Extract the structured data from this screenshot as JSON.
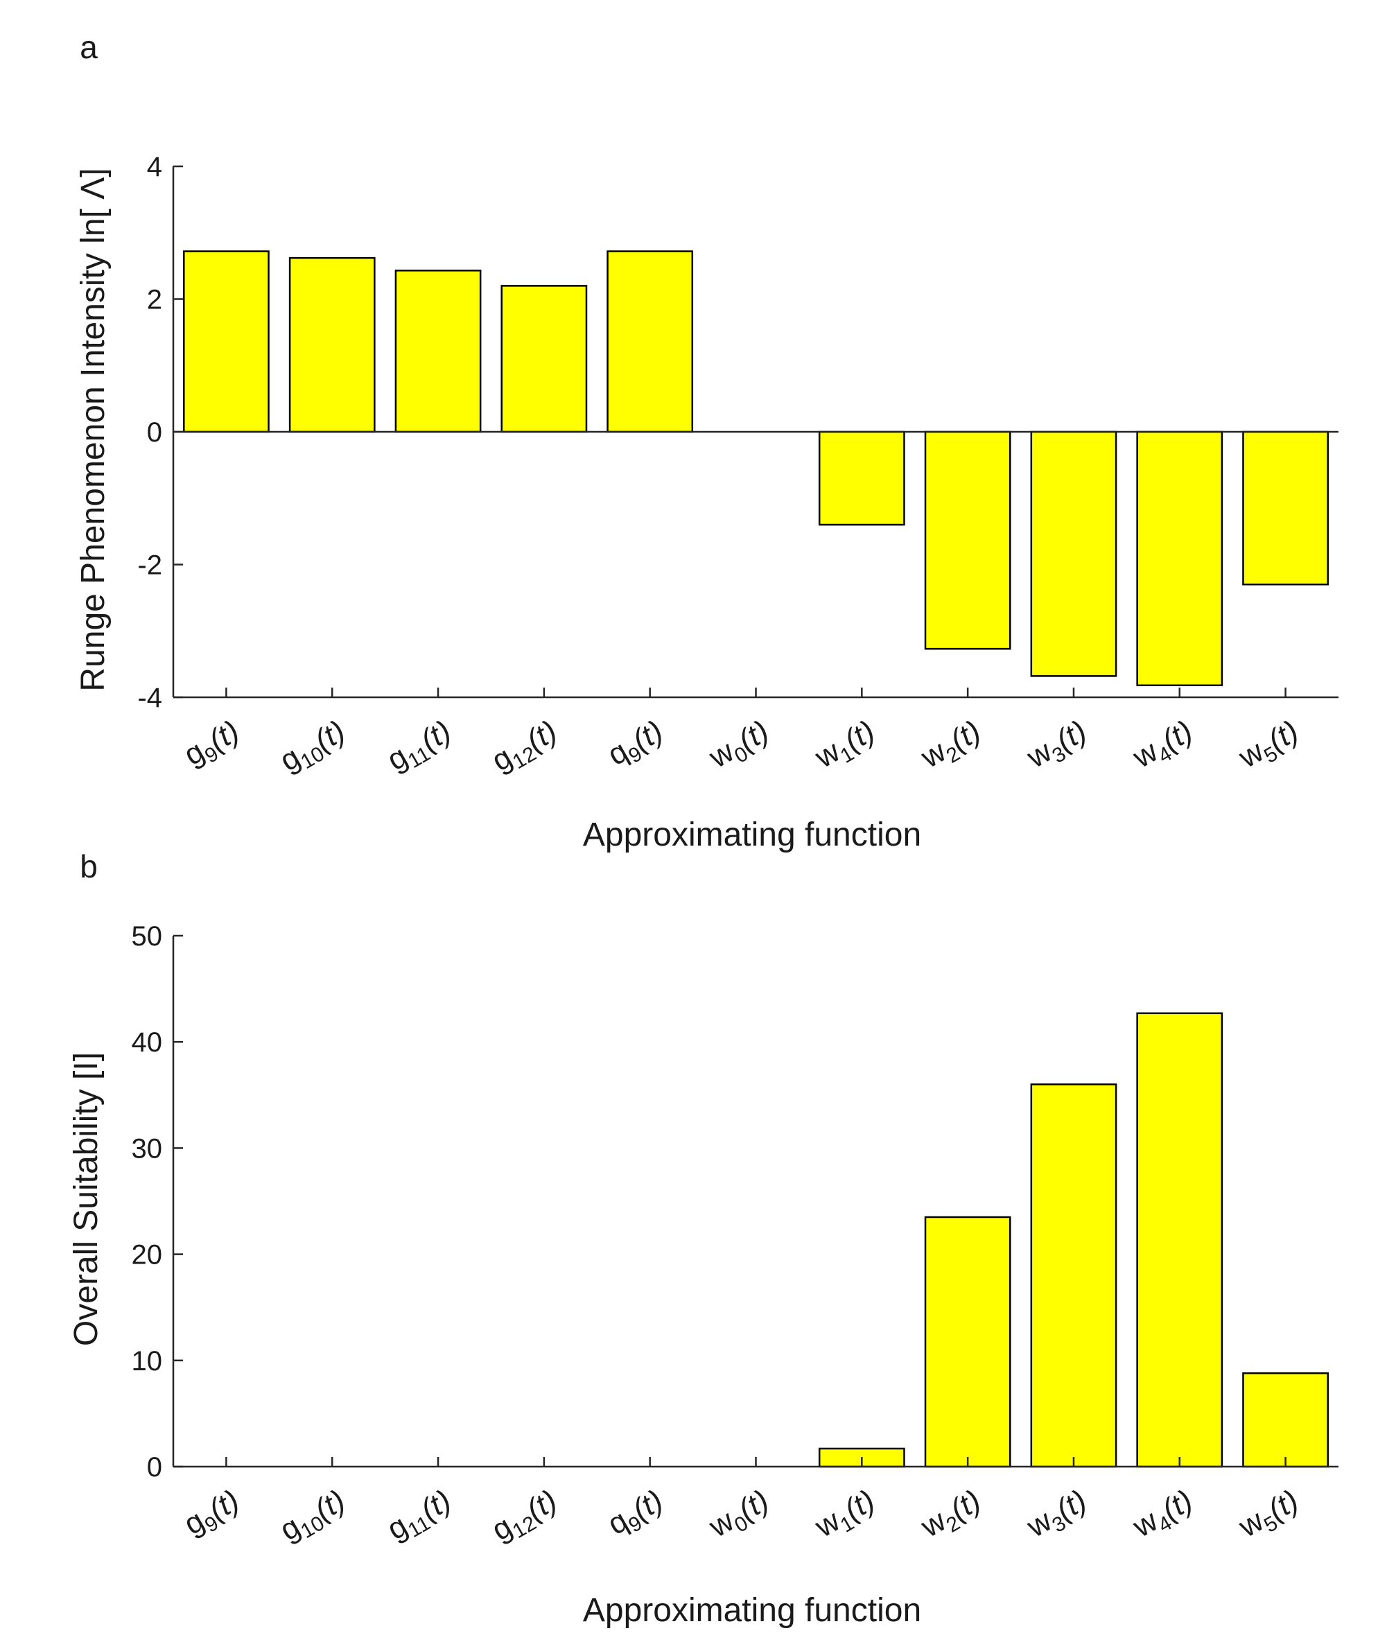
{
  "chart_data": [
    {
      "panel_label": "a",
      "type": "bar",
      "categories": [
        {
          "base": "g",
          "sub": "9",
          "arg": "(t)"
        },
        {
          "base": "g",
          "sub": "10",
          "arg": "(t)"
        },
        {
          "base": "g",
          "sub": "11",
          "arg": "(t)"
        },
        {
          "base": "g",
          "sub": "12",
          "arg": "(t)"
        },
        {
          "base": "q",
          "sub": "9",
          "arg": "(t)"
        },
        {
          "base": "w",
          "sub": "0",
          "arg": "(t)"
        },
        {
          "base": "w",
          "sub": "1",
          "arg": "(t)"
        },
        {
          "base": "w",
          "sub": "2",
          "arg": "(t)"
        },
        {
          "base": "w",
          "sub": "3",
          "arg": "(t)"
        },
        {
          "base": "w",
          "sub": "4",
          "arg": "(t)"
        },
        {
          "base": "w",
          "sub": "5",
          "arg": "(t)"
        }
      ],
      "values": [
        2.72,
        2.62,
        2.43,
        2.2,
        2.72,
        0,
        -1.4,
        -3.27,
        -3.68,
        -3.82,
        -2.3
      ],
      "xlabel": "Approximating function",
      "ylabel": "Runge Phenomenon Intensity ln[ Λ]",
      "ylim": [
        -4,
        4
      ],
      "yticks": [
        -4,
        -2,
        0,
        2,
        4
      ],
      "ytick_labels": [
        "-4",
        "-2",
        "0",
        "2",
        "4"
      ],
      "bar_color": "#ffff00",
      "edge_color": "#000000"
    },
    {
      "panel_label": "b",
      "type": "bar",
      "categories": [
        {
          "base": "g",
          "sub": "9",
          "arg": "(t)"
        },
        {
          "base": "g",
          "sub": "10",
          "arg": "(t)"
        },
        {
          "base": "g",
          "sub": "11",
          "arg": "(t)"
        },
        {
          "base": "g",
          "sub": "12",
          "arg": "(t)"
        },
        {
          "base": "q",
          "sub": "9",
          "arg": "(t)"
        },
        {
          "base": "w",
          "sub": "0",
          "arg": "(t)"
        },
        {
          "base": "w",
          "sub": "1",
          "arg": "(t)"
        },
        {
          "base": "w",
          "sub": "2",
          "arg": "(t)"
        },
        {
          "base": "w",
          "sub": "3",
          "arg": "(t)"
        },
        {
          "base": "w",
          "sub": "4",
          "arg": "(t)"
        },
        {
          "base": "w",
          "sub": "5",
          "arg": "(t)"
        }
      ],
      "values": [
        0,
        0,
        0,
        0,
        0,
        0,
        1.7,
        23.5,
        36,
        42.7,
        8.8
      ],
      "xlabel": "Approximating function",
      "ylabel": "Overall Suitability [I]",
      "ylim": [
        0,
        50
      ],
      "yticks": [
        0,
        10,
        20,
        30,
        40,
        50
      ],
      "ytick_labels": [
        "0",
        "10",
        "20",
        "30",
        "40",
        "50"
      ],
      "bar_color": "#ffff00",
      "edge_color": "#000000"
    }
  ]
}
